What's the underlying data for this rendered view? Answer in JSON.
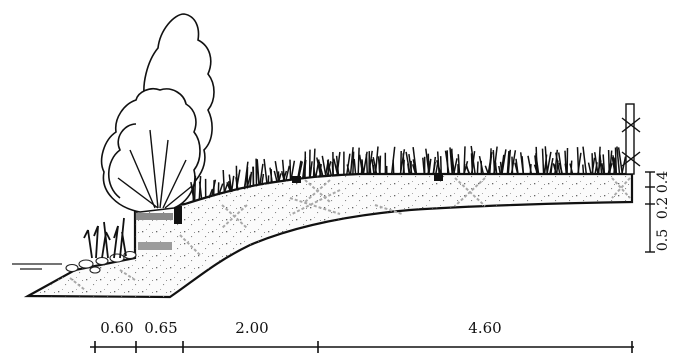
{
  "diagram": {
    "title": "",
    "horizontal_dimensions": [
      "0.60",
      "0.65",
      "2.00",
      "4.60"
    ],
    "vertical_dimensions": [
      "0.4",
      "0.2",
      "0.5"
    ],
    "colors": {
      "line": "#111111",
      "soil_speckle": "#555555",
      "geotextile_cross": "#a8a8a8",
      "fill_pattern": "#cfcfcf",
      "gray_band": "#8a8a8a"
    }
  }
}
